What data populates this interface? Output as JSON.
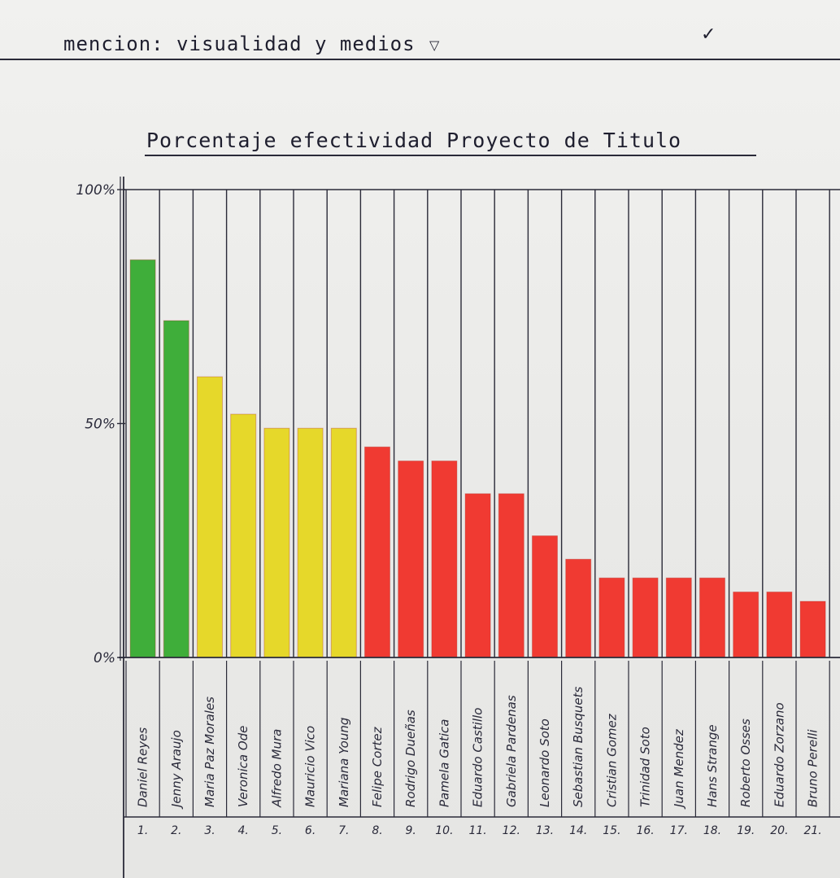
{
  "header": {
    "title": "mencion: visualidad y medios",
    "caret": "▽",
    "check": "✓"
  },
  "colors": {
    "green": "#3fae3a",
    "yellow": "#e6d82a",
    "red": "#f03a32",
    "ink": "#2a2a38"
  },
  "chart_data": {
    "type": "bar",
    "title": "Porcentaje efectividad Proyecto de Titulo",
    "xlabel": "",
    "ylabel": "",
    "ylim": [
      0,
      100
    ],
    "yticks": [
      {
        "value": 100,
        "label": "100%"
      },
      {
        "value": 50,
        "label": "50%"
      },
      {
        "value": 0,
        "label": "0%"
      }
    ],
    "grid": false,
    "numbers": [
      "1.",
      "2.",
      "3.",
      "4.",
      "5.",
      "6.",
      "7.",
      "8.",
      "9.",
      "10.",
      "11.",
      "12.",
      "13.",
      "14.",
      "15.",
      "16.",
      "17.",
      "18.",
      "19.",
      "20.",
      "21."
    ],
    "categories": [
      "Daniel Reyes",
      "Jenny Araujo",
      "Maria Paz Morales",
      "Veronica Ode",
      "Alfredo Mura",
      "Mauricio Vico",
      "Mariana Young",
      "Felipe Cortez",
      "Rodrigo Dueñas",
      "Pamela Gatica",
      "Eduardo Castillo",
      "Gabriela Pardenas",
      "Leonardo Soto",
      "Sebastian Busquets",
      "Cristian Gomez",
      "Trinidad Soto",
      "Juan Mendez",
      "Hans Strange",
      "Roberto Osses",
      "Eduardo Zorzano",
      "Bruno Perelli"
    ],
    "values": [
      85,
      72,
      60,
      52,
      49,
      49,
      49,
      45,
      42,
      42,
      35,
      35,
      26,
      21,
      17,
      17,
      17,
      17,
      14,
      14,
      12
    ],
    "colors": [
      "green",
      "green",
      "yellow",
      "yellow",
      "yellow",
      "yellow",
      "yellow",
      "red",
      "red",
      "red",
      "red",
      "red",
      "red",
      "red",
      "red",
      "red",
      "red",
      "red",
      "red",
      "red",
      "red"
    ]
  }
}
